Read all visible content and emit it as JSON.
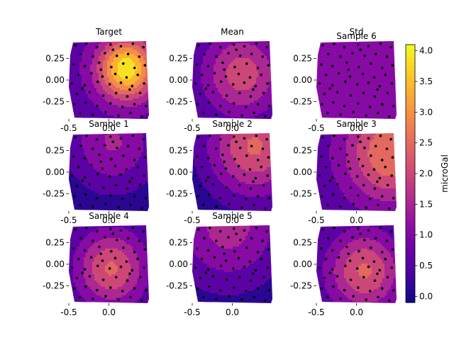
{
  "chart_data": {
    "type": "contour",
    "colormap": "plasma",
    "colorbar": {
      "label": "microGal",
      "min": -0.1,
      "max": 4.1,
      "ticks": [
        "0.0",
        "0.5",
        "1.0",
        "1.5",
        "2.0",
        "2.5",
        "3.0",
        "3.5",
        "4.0"
      ]
    },
    "x_ticks": [
      "-0.5",
      "0.0"
    ],
    "y_ticks": [
      "0.25",
      "0.00",
      "-0.25"
    ],
    "xlim": [
      -0.5,
      0.5
    ],
    "ylim": [
      -0.45,
      0.45
    ],
    "panels": [
      {
        "title": "Target",
        "field": {
          "type": "gauss",
          "cx": 0.22,
          "cy": 0.13,
          "s": 0.25,
          "peak": 4.0,
          "base": 0.6
        }
      },
      {
        "title": "Mean",
        "field": {
          "type": "gauss",
          "cx": 0.12,
          "cy": 0.07,
          "s": 0.38,
          "peak": 2.0,
          "base": 0.05
        }
      },
      {
        "title": "Std",
        "subtitle": "Sample 6",
        "field": {
          "type": "gauss",
          "cx": -0.05,
          "cy": 0.0,
          "s": 0.7,
          "peak": 1.05,
          "base": 0.65
        }
      },
      {
        "title": "Sample 1",
        "field": {
          "type": "gauss",
          "cx": 0.05,
          "cy": 0.35,
          "s": 0.4,
          "peak": 1.35,
          "base": -0.05
        }
      },
      {
        "title": "Sample 2",
        "field": {
          "type": "gauss",
          "cx": 0.28,
          "cy": 0.3,
          "s": 0.42,
          "peak": 2.3,
          "base": -0.05
        }
      },
      {
        "title": "Sample 3",
        "field": {
          "type": "gauss",
          "cx": 0.42,
          "cy": 0.22,
          "s": 0.4,
          "peak": 2.7,
          "base": 0.45
        }
      },
      {
        "title": "Sample 4",
        "field": {
          "type": "gauss",
          "cx": 0.03,
          "cy": -0.05,
          "s": 0.3,
          "peak": 2.3,
          "base": 0.3
        }
      },
      {
        "title": "Sample 5",
        "field": {
          "type": "gauss",
          "cx": -0.05,
          "cy": 0.45,
          "s": 0.5,
          "peak": 1.5,
          "base": -0.05
        }
      },
      {
        "title": "",
        "field": {
          "type": "gauss",
          "cx": 0.1,
          "cy": -0.08,
          "s": 0.32,
          "peak": 2.3,
          "base": 0.3
        }
      }
    ],
    "points": [
      [
        -0.42,
        0.4
      ],
      [
        -0.28,
        0.42
      ],
      [
        -0.15,
        0.38
      ],
      [
        0.02,
        0.41
      ],
      [
        0.15,
        0.39
      ],
      [
        0.3,
        0.42
      ],
      [
        0.43,
        0.38
      ],
      [
        -0.35,
        0.3
      ],
      [
        -0.2,
        0.27
      ],
      [
        -0.05,
        0.31
      ],
      [
        0.1,
        0.28
      ],
      [
        0.24,
        0.3
      ],
      [
        0.38,
        0.27
      ],
      [
        -0.44,
        0.18
      ],
      [
        -0.3,
        0.16
      ],
      [
        -0.12,
        0.2
      ],
      [
        0.03,
        0.15
      ],
      [
        0.18,
        0.19
      ],
      [
        0.32,
        0.14
      ],
      [
        0.45,
        0.17
      ],
      [
        -0.38,
        0.06
      ],
      [
        -0.22,
        0.08
      ],
      [
        -0.08,
        0.04
      ],
      [
        0.08,
        0.07
      ],
      [
        0.22,
        0.03
      ],
      [
        0.36,
        0.06
      ],
      [
        -0.46,
        -0.04
      ],
      [
        -0.3,
        -0.06
      ],
      [
        -0.14,
        -0.02
      ],
      [
        0.01,
        -0.05
      ],
      [
        0.15,
        -0.03
      ],
      [
        0.29,
        -0.07
      ],
      [
        0.44,
        -0.04
      ],
      [
        -0.4,
        -0.16
      ],
      [
        -0.24,
        -0.14
      ],
      [
        -0.07,
        -0.18
      ],
      [
        0.09,
        -0.15
      ],
      [
        0.23,
        -0.19
      ],
      [
        0.39,
        -0.15
      ],
      [
        -0.43,
        -0.28
      ],
      [
        -0.29,
        -0.26
      ],
      [
        -0.15,
        -0.3
      ],
      [
        0.02,
        -0.27
      ],
      [
        0.17,
        -0.31
      ],
      [
        0.32,
        -0.28
      ],
      [
        0.46,
        -0.3
      ],
      [
        -0.36,
        -0.38
      ],
      [
        -0.2,
        -0.4
      ],
      [
        -0.04,
        -0.37
      ],
      [
        0.12,
        -0.41
      ],
      [
        0.27,
        -0.38
      ],
      [
        0.41,
        -0.42
      ],
      [
        -0.1,
        0.12
      ],
      [
        0.26,
        -0.11
      ],
      [
        -0.33,
        -0.1
      ],
      [
        0.05,
        0.35
      ]
    ]
  }
}
